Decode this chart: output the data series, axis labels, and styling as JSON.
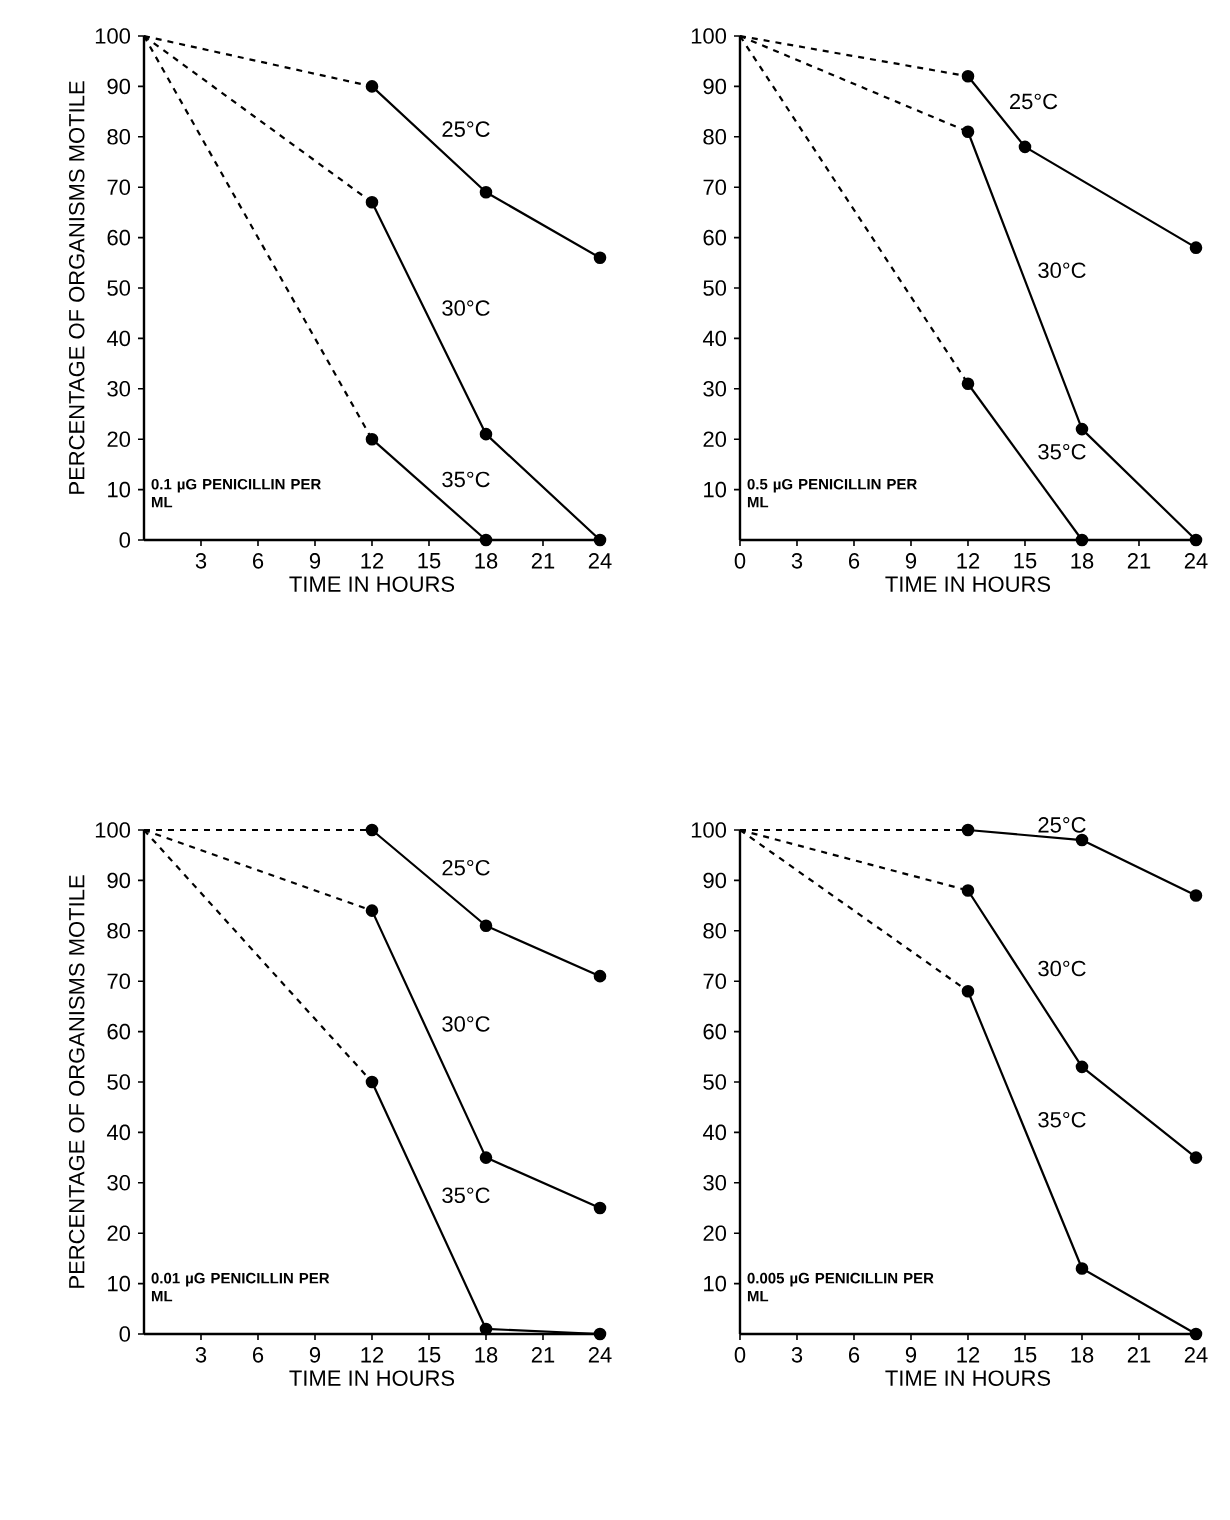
{
  "chart_data": [
    {
      "type": "line",
      "xlabel": "TIME IN HOURS",
      "ylabel": "PERCENTAGE OF ORGANISMS MOTILE",
      "xlim": [
        0,
        24
      ],
      "ylim": [
        0,
        100
      ],
      "xticks": [
        3,
        6,
        9,
        12,
        15,
        18,
        21,
        24
      ],
      "yticks": [
        0,
        10,
        20,
        30,
        40,
        50,
        60,
        70,
        80,
        90,
        100
      ],
      "annotations": [
        "0.1 µG PENICILLIN PER ML"
      ],
      "series": [
        {
          "color": "#000000",
          "line_style": "dashed",
          "x": [
            0,
            12
          ],
          "values": [
            100,
            90
          ]
        },
        {
          "name": "25°C",
          "color": "#000000",
          "line_style": "solid",
          "marker": "circle",
          "x": [
            12,
            18,
            24
          ],
          "values": [
            90,
            69,
            56
          ]
        },
        {
          "color": "#000000",
          "line_style": "dashed",
          "x": [
            0,
            12
          ],
          "values": [
            100,
            67
          ]
        },
        {
          "name": "30°C",
          "color": "#000000",
          "line_style": "solid",
          "marker": "circle",
          "x": [
            12,
            18,
            24
          ],
          "values": [
            67,
            21,
            0
          ]
        },
        {
          "color": "#000000",
          "line_style": "dashed",
          "x": [
            0,
            12
          ],
          "values": [
            100,
            20
          ]
        },
        {
          "name": "35°C",
          "color": "#000000",
          "line_style": "solid",
          "marker": "circle",
          "x": [
            12,
            18
          ],
          "values": [
            20,
            0
          ]
        }
      ]
    },
    {
      "type": "line",
      "xlabel": "TIME IN HOURS",
      "xlim": [
        0,
        24
      ],
      "ylim": [
        0,
        100
      ],
      "xticks": [
        0,
        3,
        6,
        9,
        12,
        15,
        18,
        21,
        24
      ],
      "yticks": [
        10,
        20,
        30,
        40,
        50,
        60,
        70,
        80,
        90,
        100
      ],
      "annotations": [
        "0.5 µG PENICILLIN PER ML"
      ],
      "series": [
        {
          "color": "#000000",
          "line_style": "dashed",
          "x": [
            0,
            12
          ],
          "values": [
            100,
            92
          ]
        },
        {
          "name": "25°C",
          "color": "#000000",
          "line_style": "solid",
          "marker": "circle",
          "x": [
            12,
            15,
            24
          ],
          "values": [
            92,
            78,
            58
          ]
        },
        {
          "color": "#000000",
          "line_style": "dashed",
          "x": [
            0,
            12
          ],
          "values": [
            100,
            81
          ]
        },
        {
          "name": "30°C",
          "color": "#000000",
          "line_style": "solid",
          "marker": "circle",
          "x": [
            12,
            18,
            24
          ],
          "values": [
            81,
            22,
            0
          ]
        },
        {
          "color": "#000000",
          "line_style": "dashed",
          "x": [
            0,
            12
          ],
          "values": [
            100,
            31
          ]
        },
        {
          "name": "35°C",
          "color": "#000000",
          "line_style": "solid",
          "marker": "circle",
          "x": [
            12,
            18
          ],
          "values": [
            31,
            0
          ]
        }
      ]
    },
    {
      "type": "line",
      "xlabel": "TIME IN HOURS",
      "ylabel": "PERCENTAGE OF ORGANISMS MOTILE",
      "xlim": [
        0,
        24
      ],
      "ylim": [
        0,
        100
      ],
      "xticks": [
        3,
        6,
        9,
        12,
        15,
        18,
        21,
        24
      ],
      "yticks": [
        0,
        10,
        20,
        30,
        40,
        50,
        60,
        70,
        80,
        90,
        100
      ],
      "annotations": [
        "0.01 µG PENICILLIN PER ML"
      ],
      "series": [
        {
          "color": "#000000",
          "line_style": "dashed",
          "x": [
            0,
            12
          ],
          "values": [
            100,
            100
          ]
        },
        {
          "name": "25°C",
          "color": "#000000",
          "line_style": "solid",
          "marker": "circle",
          "x": [
            12,
            18,
            24
          ],
          "values": [
            100,
            81,
            71
          ]
        },
        {
          "color": "#000000",
          "line_style": "dashed",
          "x": [
            0,
            12
          ],
          "values": [
            100,
            84
          ]
        },
        {
          "name": "30°C",
          "color": "#000000",
          "line_style": "solid",
          "marker": "circle",
          "x": [
            12,
            18,
            24
          ],
          "values": [
            84,
            35,
            25
          ]
        },
        {
          "color": "#000000",
          "line_style": "dashed",
          "x": [
            0,
            12
          ],
          "values": [
            100,
            50
          ]
        },
        {
          "name": "35°C",
          "color": "#000000",
          "line_style": "solid",
          "marker": "circle",
          "x": [
            12,
            18,
            24
          ],
          "values": [
            50,
            1,
            0
          ]
        }
      ]
    },
    {
      "type": "line",
      "xlabel": "TIME IN HOURS",
      "xlim": [
        0,
        24
      ],
      "ylim": [
        0,
        100
      ],
      "xticks": [
        0,
        3,
        6,
        9,
        12,
        15,
        18,
        21,
        24
      ],
      "yticks": [
        10,
        20,
        30,
        40,
        50,
        60,
        70,
        80,
        90,
        100
      ],
      "annotations": [
        "0.005 µG PENICILLIN PER ML"
      ],
      "series": [
        {
          "color": "#000000",
          "line_style": "dashed",
          "x": [
            0,
            12
          ],
          "values": [
            100,
            100
          ]
        },
        {
          "name": "25°C",
          "color": "#000000",
          "line_style": "solid",
          "marker": "circle",
          "x": [
            12,
            18,
            24
          ],
          "values": [
            100,
            98,
            87
          ]
        },
        {
          "color": "#000000",
          "line_style": "dashed",
          "x": [
            0,
            12
          ],
          "values": [
            100,
            88
          ]
        },
        {
          "name": "30°C",
          "color": "#000000",
          "line_style": "solid",
          "marker": "circle",
          "x": [
            12,
            18,
            24
          ],
          "values": [
            88,
            53,
            35
          ]
        },
        {
          "color": "#000000",
          "line_style": "dashed",
          "x": [
            0,
            12
          ],
          "values": [
            100,
            68
          ]
        },
        {
          "name": "35°C",
          "color": "#000000",
          "line_style": "solid",
          "marker": "circle",
          "x": [
            12,
            18,
            24
          ],
          "values": [
            68,
            13,
            0
          ]
        }
      ]
    }
  ]
}
